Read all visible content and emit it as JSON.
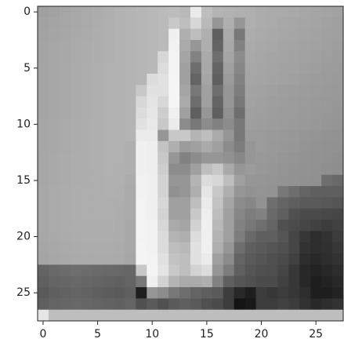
{
  "chart_data": {
    "type": "heatmap",
    "cmap": "gray",
    "vlim": [
      0,
      255
    ],
    "xlim": [
      -0.5,
      27.5
    ],
    "ylim": [
      27.5,
      -0.5
    ],
    "xticks": [
      0,
      5,
      10,
      15,
      20,
      25
    ],
    "yticks": [
      0,
      5,
      10,
      15,
      20,
      25
    ],
    "z": [
      [
        160,
        162,
        165,
        168,
        170,
        172,
        175,
        178,
        180,
        182,
        184,
        186,
        188,
        185,
        235,
        190,
        180,
        178,
        176,
        175,
        172,
        170,
        170,
        168,
        166,
        165,
        164,
        162
      ],
      [
        162,
        164,
        166,
        168,
        170,
        173,
        176,
        178,
        180,
        182,
        184,
        186,
        200,
        190,
        215,
        185,
        150,
        175,
        150,
        175,
        172,
        170,
        168,
        166,
        165,
        164,
        162,
        160
      ],
      [
        163,
        165,
        167,
        169,
        171,
        174,
        176,
        178,
        180,
        182,
        184,
        186,
        240,
        175,
        190,
        175,
        95,
        170,
        120,
        172,
        170,
        168,
        167,
        165,
        164,
        163,
        161,
        160
      ],
      [
        164,
        166,
        168,
        170,
        172,
        174,
        176,
        178,
        180,
        182,
        184,
        186,
        242,
        170,
        150,
        175,
        100,
        168,
        130,
        170,
        168,
        167,
        165,
        164,
        163,
        162,
        160,
        158
      ],
      [
        164,
        166,
        168,
        170,
        172,
        174,
        176,
        178,
        180,
        182,
        184,
        215,
        243,
        165,
        130,
        170,
        110,
        165,
        140,
        168,
        166,
        165,
        164,
        163,
        162,
        160,
        158,
        156
      ],
      [
        165,
        167,
        169,
        171,
        173,
        175,
        177,
        178,
        180,
        182,
        184,
        220,
        244,
        160,
        110,
        168,
        100,
        160,
        135,
        166,
        165,
        164,
        163,
        162,
        160,
        158,
        156,
        155
      ],
      [
        165,
        167,
        169,
        171,
        173,
        175,
        177,
        178,
        180,
        182,
        220,
        225,
        245,
        160,
        100,
        165,
        95,
        155,
        130,
        165,
        164,
        163,
        162,
        160,
        158,
        156,
        155,
        154
      ],
      [
        165,
        167,
        169,
        171,
        173,
        175,
        177,
        178,
        180,
        200,
        225,
        225,
        245,
        165,
        120,
        160,
        110,
        150,
        125,
        163,
        162,
        160,
        158,
        157,
        156,
        155,
        154,
        153
      ],
      [
        165,
        167,
        169,
        171,
        173,
        175,
        177,
        178,
        180,
        215,
        228,
        215,
        245,
        170,
        110,
        160,
        100,
        150,
        120,
        162,
        160,
        158,
        157,
        156,
        155,
        154,
        153,
        152
      ],
      [
        165,
        167,
        169,
        171,
        173,
        175,
        177,
        178,
        180,
        220,
        230,
        205,
        240,
        160,
        95,
        150,
        95,
        145,
        110,
        160,
        158,
        157,
        156,
        155,
        154,
        153,
        152,
        150
      ],
      [
        166,
        168,
        170,
        172,
        174,
        175,
        177,
        178,
        180,
        225,
        232,
        200,
        235,
        140,
        120,
        140,
        130,
        140,
        120,
        158,
        157,
        156,
        155,
        154,
        153,
        152,
        150,
        148
      ],
      [
        166,
        168,
        170,
        172,
        174,
        175,
        177,
        178,
        180,
        235,
        235,
        150,
        200,
        200,
        180,
        190,
        170,
        150,
        120,
        155,
        155,
        154,
        153,
        152,
        150,
        148,
        147,
        146
      ],
      [
        166,
        168,
        170,
        172,
        174,
        175,
        177,
        178,
        175,
        240,
        238,
        195,
        175,
        155,
        160,
        170,
        160,
        140,
        125,
        150,
        155,
        153,
        152,
        150,
        148,
        147,
        146,
        145
      ],
      [
        167,
        169,
        171,
        173,
        174,
        175,
        177,
        178,
        175,
        240,
        238,
        200,
        150,
        130,
        140,
        150,
        150,
        145,
        135,
        150,
        153,
        152,
        150,
        148,
        147,
        146,
        145,
        143
      ],
      [
        167,
        169,
        171,
        173,
        174,
        175,
        177,
        176,
        175,
        240,
        238,
        205,
        140,
        140,
        160,
        190,
        200,
        170,
        150,
        155,
        152,
        150,
        148,
        147,
        146,
        145,
        143,
        142
      ],
      [
        167,
        169,
        171,
        173,
        174,
        175,
        176,
        176,
        172,
        242,
        240,
        210,
        150,
        150,
        180,
        220,
        215,
        190,
        160,
        150,
        150,
        148,
        147,
        146,
        145,
        144,
        110,
        105
      ],
      [
        168,
        170,
        172,
        174,
        175,
        175,
        176,
        175,
        170,
        242,
        240,
        210,
        145,
        150,
        175,
        230,
        200,
        175,
        150,
        145,
        148,
        147,
        120,
        110,
        100,
        95,
        95,
        95
      ],
      [
        168,
        170,
        172,
        174,
        175,
        175,
        175,
        174,
        170,
        243,
        240,
        215,
        160,
        160,
        190,
        235,
        195,
        165,
        140,
        135,
        146,
        110,
        100,
        95,
        90,
        90,
        88,
        85
      ],
      [
        168,
        170,
        172,
        174,
        175,
        175,
        175,
        173,
        170,
        243,
        240,
        210,
        160,
        160,
        200,
        238,
        190,
        160,
        135,
        125,
        130,
        105,
        95,
        80,
        75,
        75,
        72,
        70
      ],
      [
        168,
        170,
        172,
        173,
        174,
        174,
        174,
        172,
        168,
        243,
        242,
        215,
        170,
        165,
        210,
        240,
        185,
        160,
        130,
        120,
        110,
        100,
        80,
        75,
        70,
        65,
        60,
        65
      ],
      [
        167,
        169,
        171,
        172,
        173,
        173,
        173,
        172,
        168,
        243,
        242,
        220,
        180,
        175,
        220,
        240,
        180,
        160,
        125,
        105,
        95,
        95,
        85,
        70,
        55,
        45,
        50,
        60
      ],
      [
        166,
        168,
        170,
        171,
        172,
        172,
        172,
        171,
        168,
        244,
        242,
        220,
        190,
        185,
        225,
        240,
        175,
        150,
        110,
        95,
        90,
        85,
        80,
        70,
        50,
        45,
        48,
        55
      ],
      [
        165,
        167,
        169,
        170,
        171,
        171,
        171,
        170,
        166,
        244,
        243,
        225,
        195,
        190,
        225,
        235,
        160,
        140,
        100,
        90,
        85,
        80,
        75,
        65,
        45,
        40,
        45,
        50
      ],
      [
        100,
        105,
        108,
        110,
        108,
        106,
        105,
        104,
        102,
        200,
        244,
        228,
        200,
        190,
        210,
        220,
        150,
        125,
        95,
        85,
        80,
        78,
        70,
        55,
        40,
        35,
        40,
        45
      ],
      [
        95,
        100,
        102,
        104,
        102,
        100,
        98,
        96,
        100,
        120,
        240,
        210,
        180,
        170,
        170,
        175,
        130,
        95,
        85,
        80,
        75,
        75,
        65,
        55,
        40,
        30,
        35,
        40
      ],
      [
        90,
        95,
        98,
        100,
        98,
        95,
        92,
        90,
        95,
        30,
        150,
        140,
        120,
        110,
        100,
        95,
        90,
        60,
        40,
        30,
        60,
        55,
        60,
        55,
        45,
        30,
        30,
        35
      ],
      [
        95,
        100,
        102,
        104,
        102,
        100,
        98,
        96,
        100,
        80,
        90,
        80,
        90,
        95,
        90,
        80,
        75,
        60,
        20,
        25,
        60,
        60,
        65,
        60,
        50,
        40,
        45,
        50
      ],
      [
        230,
        190,
        190,
        190,
        190,
        190,
        190,
        190,
        190,
        190,
        190,
        190,
        190,
        190,
        190,
        190,
        190,
        190,
        190,
        190,
        190,
        190,
        190,
        190,
        190,
        190,
        190,
        190
      ]
    ]
  }
}
